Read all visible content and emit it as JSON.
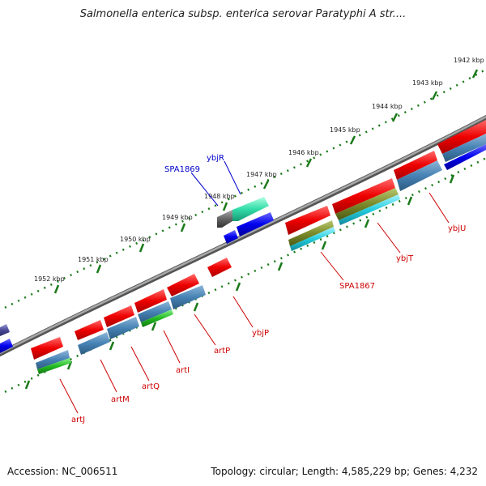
{
  "title": "Salmonella enterica subsp. enterica serovar Paratyphi A str....",
  "footer": {
    "accession": "Accession: NC_006511",
    "stats": "Topology: circular; Length: 4,585,229 bp; Genes: 4,232"
  },
  "scale_labels": [
    "1942 kbp",
    "1943 kbp",
    "1944 kbp",
    "1945 kbp",
    "1946 kbp",
    "1947 kbp",
    "1948 kbp",
    "1949 kbp",
    "1950 kbp",
    "1951 kbp",
    "1952 kbp"
  ],
  "gene_labels": {
    "forward": [
      "SPA1869",
      "ybjR"
    ],
    "reverse": [
      "ybjU",
      "ybjT",
      "SPA1867",
      "ybjP",
      "artP",
      "artI",
      "artQ",
      "artM",
      "artJ"
    ]
  },
  "colors": {
    "backbone": "#808080",
    "gene": "#ee0000",
    "cds": "#4682b4",
    "forward_label": "#0000cc",
    "reverse_label": "#cc0000",
    "ticks": "#1a7a1a"
  }
}
